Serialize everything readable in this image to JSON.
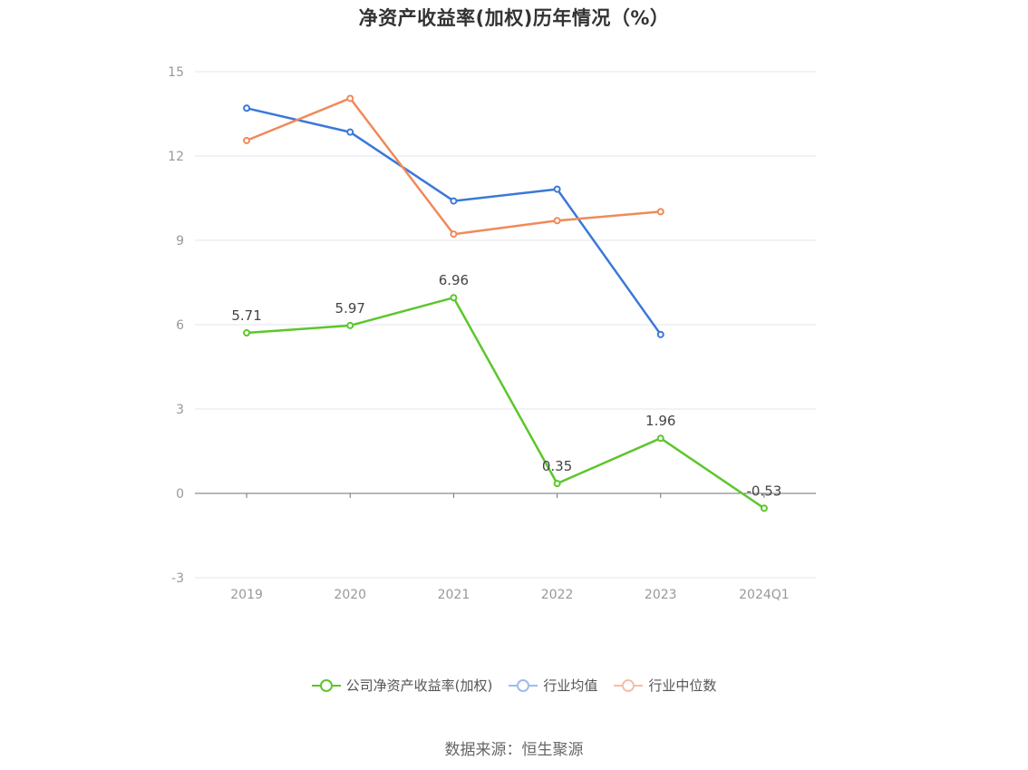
{
  "page": {
    "source_label": "数据来源：恒生聚源"
  },
  "chart_data": {
    "type": "line",
    "title": "净资产收益率(加权)历年情况（%）",
    "xlabel": "",
    "ylabel": "",
    "categories": [
      "2019",
      "2020",
      "2021",
      "2022",
      "2023",
      "2024Q1"
    ],
    "ylim": [
      -3,
      15
    ],
    "yticks": [
      15,
      12,
      9,
      6,
      3,
      0,
      -3
    ],
    "grid": true,
    "legend_position": "bottom",
    "series": [
      {
        "name": "公司净资产收益率(加权)",
        "color": "#5cc62b",
        "values": [
          5.71,
          5.97,
          6.96,
          0.35,
          1.96,
          -0.53
        ],
        "labels": [
          "5.71",
          "5.97",
          "6.96",
          "0.35",
          "1.96",
          "-0.53"
        ]
      },
      {
        "name": "行业均值",
        "color": "#3a78d8",
        "legend_color": "#9bbcee",
        "values": [
          13.7,
          12.85,
          10.4,
          10.82,
          5.65,
          null
        ]
      },
      {
        "name": "行业中位数",
        "color": "#ef8a5a",
        "legend_color": "#f6bfa5",
        "values": [
          12.55,
          14.05,
          9.22,
          9.7,
          10.02,
          null
        ]
      }
    ]
  }
}
